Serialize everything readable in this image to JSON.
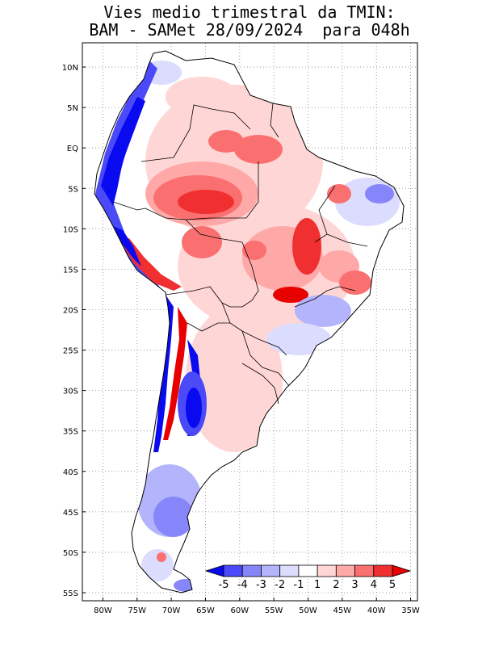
{
  "title": {
    "line1": "Vies medio trimestral da TMIN:",
    "line2": "BAM - SAMet 28/09/2024  para 048h"
  },
  "map": {
    "lon_range": [
      -83,
      -34
    ],
    "lat_range": [
      -56,
      13
    ],
    "lon_ticks": [
      {
        "value": -80,
        "label": "80W"
      },
      {
        "value": -75,
        "label": "75W"
      },
      {
        "value": -70,
        "label": "70W"
      },
      {
        "value": -65,
        "label": "65W"
      },
      {
        "value": -60,
        "label": "60W"
      },
      {
        "value": -55,
        "label": "55W"
      },
      {
        "value": -50,
        "label": "50W"
      },
      {
        "value": -45,
        "label": "45W"
      },
      {
        "value": -40,
        "label": "40W"
      },
      {
        "value": -35,
        "label": "35W"
      }
    ],
    "lat_ticks": [
      {
        "value": 10,
        "label": "10N"
      },
      {
        "value": 5,
        "label": "5N"
      },
      {
        "value": 0,
        "label": "EQ"
      },
      {
        "value": -5,
        "label": "5S"
      },
      {
        "value": -10,
        "label": "10S"
      },
      {
        "value": -15,
        "label": "15S"
      },
      {
        "value": -20,
        "label": "20S"
      },
      {
        "value": -25,
        "label": "25S"
      },
      {
        "value": -30,
        "label": "30S"
      },
      {
        "value": -35,
        "label": "35S"
      },
      {
        "value": -40,
        "label": "40S"
      },
      {
        "value": -45,
        "label": "45S"
      },
      {
        "value": -50,
        "label": "50S"
      },
      {
        "value": -55,
        "label": "55S"
      }
    ],
    "grid": "dotted"
  },
  "colorbar": {
    "labels": [
      "-5",
      "-4",
      "-3",
      "-2",
      "-1",
      "1",
      "2",
      "3",
      "4",
      "5"
    ],
    "colors": [
      "#0a0af0",
      "#4a4af8",
      "#8686fa",
      "#b4b4fc",
      "#dcdcfe",
      "#ffffff",
      "#ffd6d6",
      "#ffa8a8",
      "#fa7070",
      "#f03030",
      "#e80000"
    ]
  }
}
